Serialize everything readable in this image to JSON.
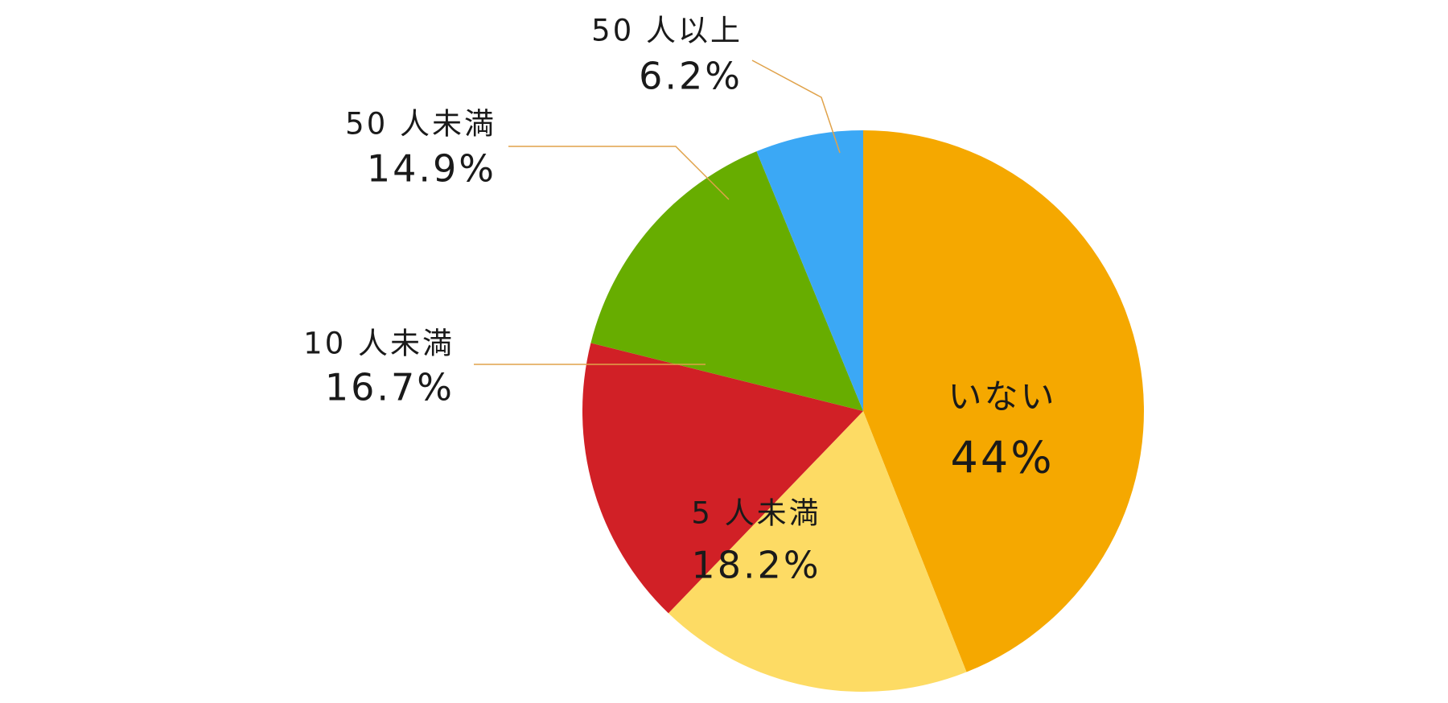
{
  "chart_data": {
    "type": "pie",
    "categories": [
      "いない",
      "5 人未満",
      "10 人未満",
      "50 人未満",
      "50 人以上"
    ],
    "values": [
      44,
      18.2,
      16.7,
      14.9,
      6.2
    ],
    "value_labels": [
      "44%",
      "18.2%",
      "16.7%",
      "14.9%",
      "6.2%"
    ],
    "colors": [
      "#f5a800",
      "#fddb64",
      "#d12026",
      "#67ad00",
      "#3ba8f5"
    ]
  }
}
